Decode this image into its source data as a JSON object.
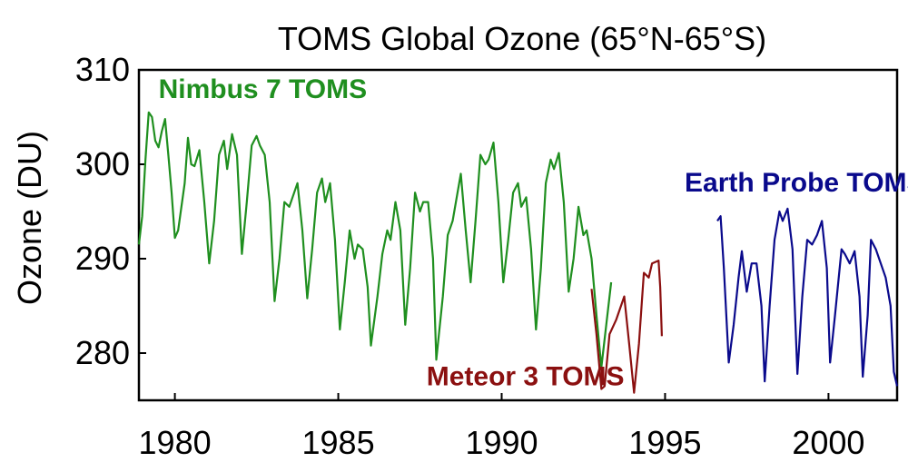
{
  "chart_data": {
    "type": "line",
    "title": "TOMS Global Ozone (65°N-65°S)",
    "xlabel": "",
    "ylabel": "Ozone (DU)",
    "xlim": [
      1978.9,
      2002.1
    ],
    "ylim": [
      275,
      310
    ],
    "x_ticks": [
      1980,
      1985,
      1990,
      1995,
      2000
    ],
    "y_ticks": [
      280,
      290,
      300,
      310
    ],
    "grid": false,
    "legend": "none",
    "series": [
      {
        "name": "Nimbus 7 TOMS",
        "color": "#1f8f1f",
        "points": [
          [
            1978.9,
            291.5
          ],
          [
            1979.0,
            294.5
          ],
          [
            1979.1,
            300.5
          ],
          [
            1979.2,
            305.5
          ],
          [
            1979.3,
            305.0
          ],
          [
            1979.4,
            302.5
          ],
          [
            1979.5,
            301.8
          ],
          [
            1979.6,
            303.5
          ],
          [
            1979.7,
            304.8
          ],
          [
            1979.8,
            301.0
          ],
          [
            1979.9,
            297.0
          ],
          [
            1980.0,
            292.2
          ],
          [
            1980.1,
            293.0
          ],
          [
            1980.3,
            298.0
          ],
          [
            1980.4,
            302.8
          ],
          [
            1980.5,
            300.0
          ],
          [
            1980.6,
            299.8
          ],
          [
            1980.75,
            301.5
          ],
          [
            1980.9,
            296.0
          ],
          [
            1981.05,
            289.5
          ],
          [
            1981.2,
            294.0
          ],
          [
            1981.35,
            301.0
          ],
          [
            1981.5,
            302.5
          ],
          [
            1981.6,
            299.5
          ],
          [
            1981.75,
            303.2
          ],
          [
            1981.9,
            301.0
          ],
          [
            1982.05,
            290.5
          ],
          [
            1982.2,
            296.0
          ],
          [
            1982.35,
            302.0
          ],
          [
            1982.5,
            303.0
          ],
          [
            1982.6,
            302.0
          ],
          [
            1982.75,
            301.0
          ],
          [
            1982.9,
            296.0
          ],
          [
            1983.05,
            285.5
          ],
          [
            1983.2,
            290.0
          ],
          [
            1983.35,
            296.0
          ],
          [
            1983.5,
            295.5
          ],
          [
            1983.65,
            297.0
          ],
          [
            1983.75,
            298.0
          ],
          [
            1983.9,
            293.0
          ],
          [
            1984.05,
            285.8
          ],
          [
            1984.2,
            291.0
          ],
          [
            1984.35,
            297.0
          ],
          [
            1984.5,
            298.5
          ],
          [
            1984.6,
            296.0
          ],
          [
            1984.75,
            298.0
          ],
          [
            1984.9,
            292.0
          ],
          [
            1985.05,
            282.5
          ],
          [
            1985.2,
            287.5
          ],
          [
            1985.35,
            293.0
          ],
          [
            1985.5,
            290.0
          ],
          [
            1985.6,
            291.5
          ],
          [
            1985.75,
            291.0
          ],
          [
            1985.9,
            287.0
          ],
          [
            1986.0,
            280.8
          ],
          [
            1986.2,
            286.0
          ],
          [
            1986.35,
            290.5
          ],
          [
            1986.5,
            293.0
          ],
          [
            1986.6,
            292.0
          ],
          [
            1986.75,
            296.0
          ],
          [
            1986.9,
            293.0
          ],
          [
            1987.05,
            283.0
          ],
          [
            1987.2,
            289.0
          ],
          [
            1987.35,
            297.0
          ],
          [
            1987.5,
            295.0
          ],
          [
            1987.6,
            296.0
          ],
          [
            1987.75,
            296.0
          ],
          [
            1987.9,
            290.0
          ],
          [
            1988.0,
            279.3
          ],
          [
            1988.2,
            286.0
          ],
          [
            1988.35,
            292.5
          ],
          [
            1988.5,
            294.0
          ],
          [
            1988.6,
            296.0
          ],
          [
            1988.75,
            299.0
          ],
          [
            1988.9,
            293.0
          ],
          [
            1989.05,
            287.5
          ],
          [
            1989.2,
            294.0
          ],
          [
            1989.35,
            301.0
          ],
          [
            1989.5,
            300.0
          ],
          [
            1989.6,
            300.5
          ],
          [
            1989.75,
            302.3
          ],
          [
            1989.9,
            296.0
          ],
          [
            1990.05,
            287.5
          ],
          [
            1990.2,
            292.0
          ],
          [
            1990.35,
            297.0
          ],
          [
            1990.5,
            298.0
          ],
          [
            1990.6,
            295.5
          ],
          [
            1990.75,
            296.5
          ],
          [
            1990.9,
            291.0
          ],
          [
            1991.05,
            282.5
          ],
          [
            1991.2,
            289.0
          ],
          [
            1991.35,
            298.0
          ],
          [
            1991.5,
            300.5
          ],
          [
            1991.6,
            299.5
          ],
          [
            1991.75,
            301.2
          ],
          [
            1991.9,
            296.0
          ],
          [
            1992.05,
            286.5
          ],
          [
            1992.2,
            290.0
          ],
          [
            1992.35,
            295.5
          ],
          [
            1992.5,
            292.5
          ],
          [
            1992.6,
            293.0
          ],
          [
            1992.75,
            290.0
          ],
          [
            1992.9,
            284.0
          ],
          [
            1993.05,
            278.5
          ],
          [
            1993.2,
            283.0
          ],
          [
            1993.35,
            287.5
          ]
        ]
      },
      {
        "name": "Meteor 3 TOMS",
        "color": "#8b1010",
        "points": [
          [
            1992.75,
            286.8
          ],
          [
            1992.9,
            282.0
          ],
          [
            1993.05,
            276.2
          ],
          [
            1993.15,
            276.5
          ],
          [
            1993.3,
            282.0
          ],
          [
            1993.5,
            283.5
          ],
          [
            1993.75,
            286.0
          ],
          [
            1993.9,
            281.0
          ],
          [
            1994.05,
            275.8
          ],
          [
            1994.2,
            281.0
          ],
          [
            1994.35,
            288.5
          ],
          [
            1994.5,
            288.0
          ],
          [
            1994.6,
            289.5
          ],
          [
            1994.8,
            289.8
          ],
          [
            1994.85,
            287.0
          ],
          [
            1994.9,
            281.8
          ]
        ]
      },
      {
        "name": "Earth Probe TOMS",
        "color": "#0a0a8c",
        "points": [
          [
            1996.6,
            294.0
          ],
          [
            1996.7,
            294.5
          ],
          [
            1996.8,
            289.0
          ],
          [
            1996.95,
            279.0
          ],
          [
            1997.1,
            283.0
          ],
          [
            1997.25,
            288.0
          ],
          [
            1997.35,
            290.8
          ],
          [
            1997.5,
            286.5
          ],
          [
            1997.65,
            289.5
          ],
          [
            1997.8,
            289.5
          ],
          [
            1997.95,
            285.0
          ],
          [
            1998.05,
            277.0
          ],
          [
            1998.2,
            285.0
          ],
          [
            1998.35,
            292.0
          ],
          [
            1998.5,
            295.0
          ],
          [
            1998.6,
            294.0
          ],
          [
            1998.75,
            295.3
          ],
          [
            1998.9,
            291.0
          ],
          [
            1999.05,
            277.8
          ],
          [
            1999.2,
            286.0
          ],
          [
            1999.35,
            292.0
          ],
          [
            1999.5,
            291.5
          ],
          [
            1999.65,
            292.5
          ],
          [
            1999.8,
            294.0
          ],
          [
            1999.95,
            289.0
          ],
          [
            2000.05,
            279.0
          ],
          [
            2000.2,
            284.0
          ],
          [
            2000.4,
            291.0
          ],
          [
            2000.5,
            290.5
          ],
          [
            2000.65,
            289.5
          ],
          [
            2000.8,
            290.8
          ],
          [
            2000.95,
            286.0
          ],
          [
            2001.05,
            277.5
          ],
          [
            2001.2,
            284.0
          ],
          [
            2001.3,
            292.0
          ],
          [
            2001.45,
            291.0
          ],
          [
            2001.6,
            289.5
          ],
          [
            2001.75,
            288.0
          ],
          [
            2001.9,
            285.0
          ],
          [
            2002.0,
            278.0
          ],
          [
            2002.1,
            276.5
          ]
        ]
      }
    ],
    "annotations": [
      {
        "text": "Nimbus 7 TOMS",
        "series": 0,
        "x": 1979.5,
        "y": 307
      },
      {
        "text": "Meteor 3 TOMS",
        "series": 1,
        "x": 1987.7,
        "y": 276.6
      },
      {
        "text": "Earth Probe TOMS",
        "series": 2,
        "x": 1995.6,
        "y": 297.1
      }
    ]
  }
}
